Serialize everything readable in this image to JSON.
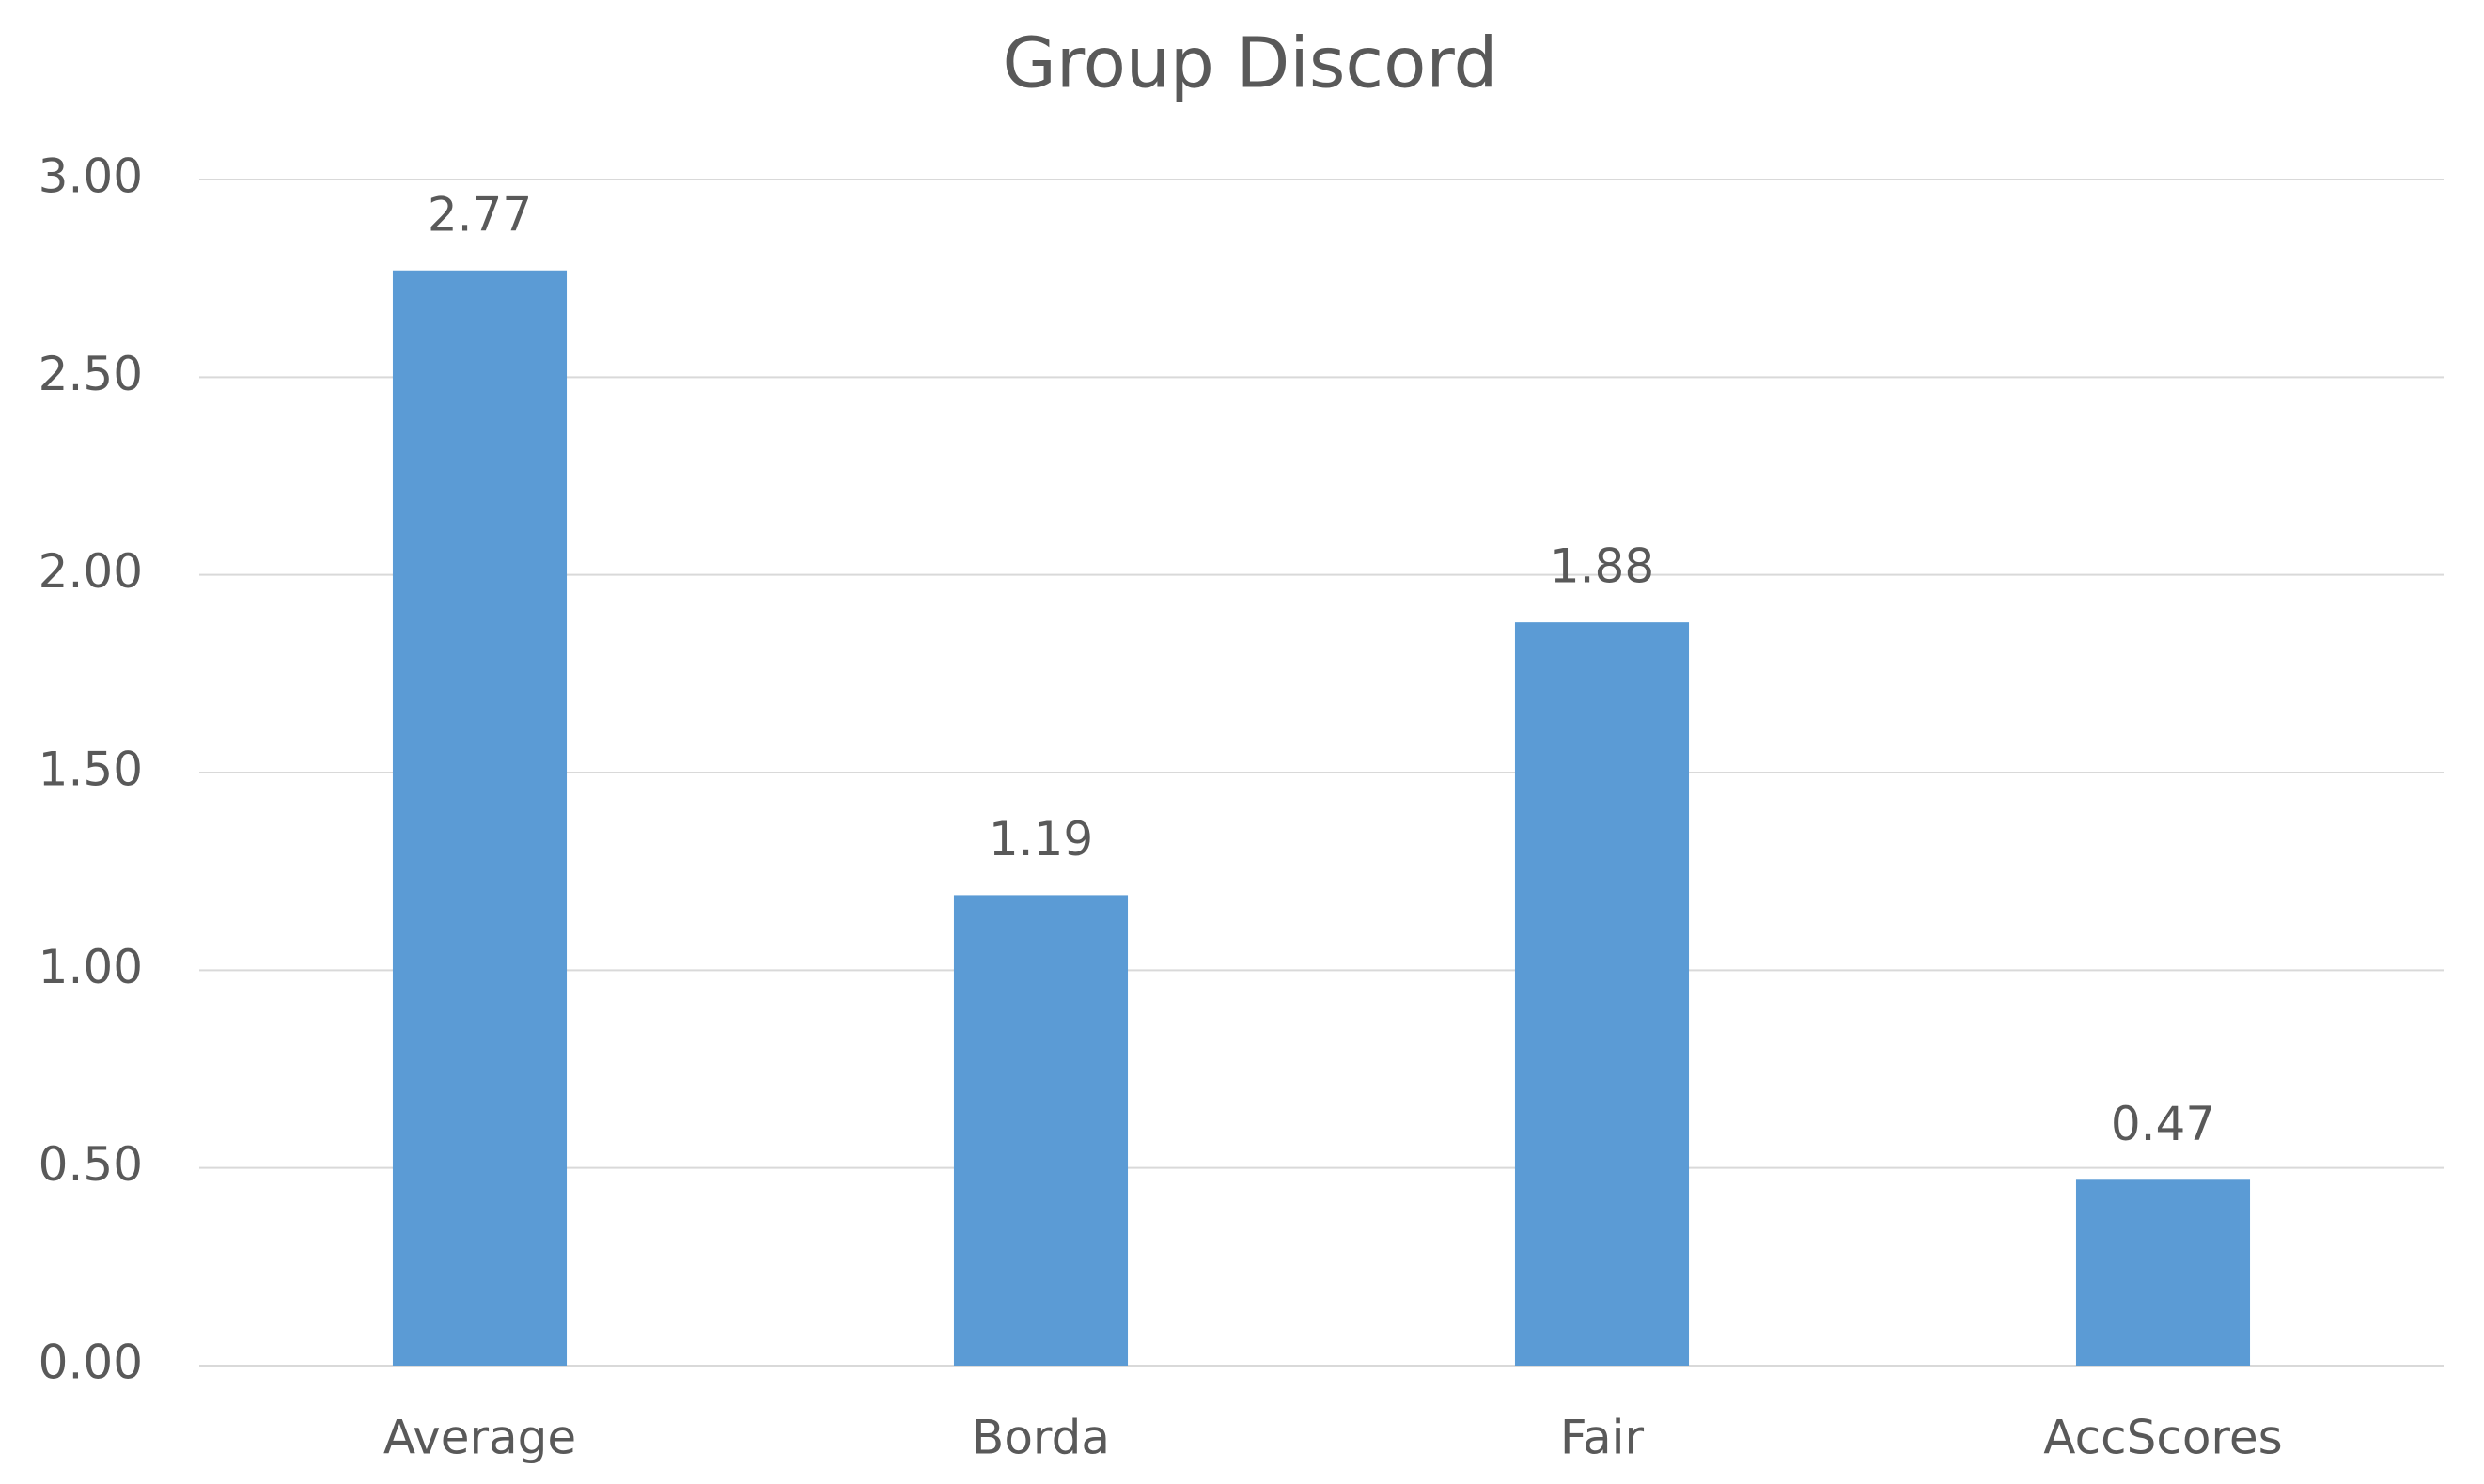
{
  "chart_data": {
    "type": "bar",
    "title": "Group Discord",
    "categories": [
      "Average",
      "Borda",
      "Fair",
      "AccScores"
    ],
    "values": [
      2.77,
      1.19,
      1.88,
      0.47
    ],
    "color": "#5b9bd5",
    "ylim": [
      0,
      3
    ],
    "yticks": [
      {
        "value": 0,
        "label": "0.00"
      },
      {
        "value": 0.5,
        "label": "0.50"
      },
      {
        "value": 1,
        "label": "1.00"
      },
      {
        "value": 1.5,
        "label": "1.50"
      },
      {
        "value": 2,
        "label": "2.00"
      },
      {
        "value": 2.5,
        "label": "2.50"
      },
      {
        "value": 3,
        "label": "3.00"
      }
    ],
    "grid": true
  }
}
